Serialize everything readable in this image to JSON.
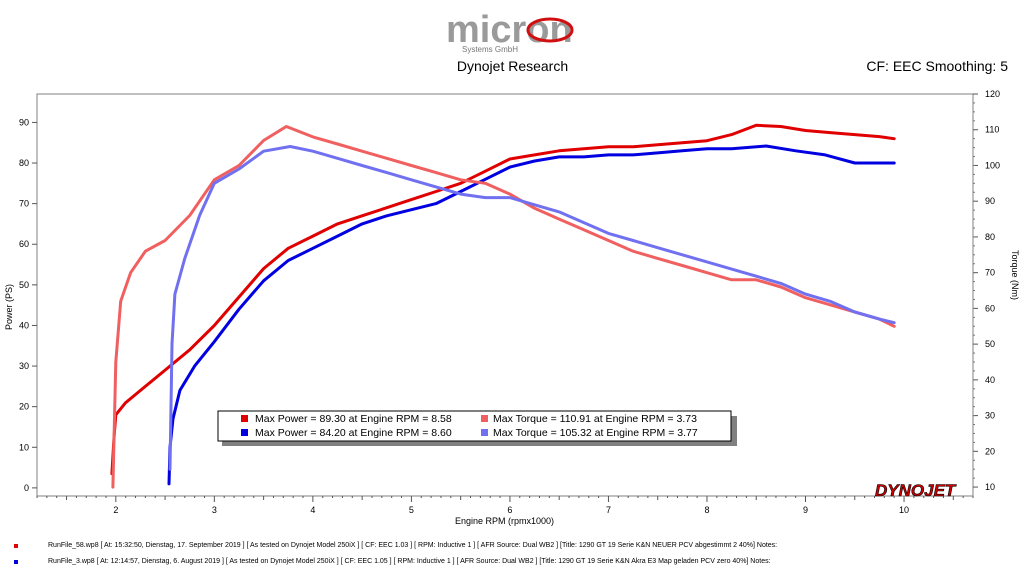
{
  "header": {
    "brand": "micron",
    "brand_sub": "Systems GmbH",
    "title": "Dynojet Research",
    "cf_label": "CF: EEC Smoothing: 5"
  },
  "watermark": "DYNOJET",
  "chart_data": {
    "type": "line",
    "xlabel": "Engine RPM (rpmx1000)",
    "ylabel_left": "Power (PS)",
    "ylabel_right": "Torque (Nm)",
    "xlim": [
      1.2,
      10.7
    ],
    "ylim_left": [
      -2,
      97
    ],
    "ylim_right": [
      7.5,
      120
    ],
    "x_ticks": [
      2,
      3,
      4,
      5,
      6,
      7,
      8,
      9,
      10
    ],
    "y_left_ticks": [
      0,
      10,
      20,
      30,
      40,
      50,
      60,
      70,
      80,
      90
    ],
    "y_right_ticks": [
      10,
      20,
      30,
      40,
      50,
      60,
      70,
      80,
      90,
      100,
      110,
      120
    ],
    "legend": [
      {
        "text": "Max Power = 89.30 at Engine RPM = 8.58",
        "color": "#e00000"
      },
      {
        "text": "Max Torque = 110.91 at Engine RPM = 3.73",
        "color": "#f06060"
      },
      {
        "text": "Max Power = 84.20 at Engine RPM = 8.60",
        "color": "#0000e0"
      },
      {
        "text": "Max Torque = 105.32 at Engine RPM = 3.77",
        "color": "#7070f0"
      }
    ],
    "series": [
      {
        "name": "Power RunFile_58",
        "axis": "left",
        "color": "#e00000",
        "x": [
          1.96,
          1.98,
          2.0,
          2.1,
          2.25,
          2.5,
          2.75,
          3.0,
          3.25,
          3.5,
          3.75,
          4.0,
          4.25,
          4.5,
          4.75,
          5.0,
          5.25,
          5.5,
          5.75,
          6.0,
          6.25,
          6.5,
          6.75,
          7.0,
          7.25,
          7.5,
          7.75,
          8.0,
          8.25,
          8.5,
          8.75,
          9.0,
          9.25,
          9.5,
          9.75,
          9.9
        ],
        "y": [
          3.5,
          12,
          18,
          21,
          24,
          29,
          34,
          40,
          47,
          54,
          59,
          62,
          65,
          67,
          69,
          71,
          73,
          75,
          78,
          81,
          82,
          83,
          83.5,
          84,
          84,
          84.5,
          85,
          85.5,
          87,
          89.3,
          89,
          88,
          87.5,
          87,
          86.5,
          86
        ]
      },
      {
        "name": "Power RunFile_3",
        "axis": "left",
        "color": "#0000e0",
        "x": [
          2.54,
          2.55,
          2.58,
          2.65,
          2.8,
          3.0,
          3.25,
          3.5,
          3.75,
          4.0,
          4.25,
          4.5,
          4.75,
          5.0,
          5.25,
          5.5,
          5.75,
          6.0,
          6.25,
          6.5,
          6.75,
          7.0,
          7.25,
          7.5,
          7.75,
          8.0,
          8.25,
          8.6,
          8.9,
          9.2,
          9.5,
          9.9
        ],
        "y": [
          1,
          10,
          17,
          24,
          30,
          36,
          44,
          51,
          56,
          59,
          62,
          65,
          67,
          68.5,
          70,
          73,
          76,
          79,
          80.5,
          81.5,
          81.5,
          82,
          82,
          82.5,
          83,
          83.5,
          83.5,
          84.2,
          83,
          82,
          80,
          80
        ]
      },
      {
        "name": "Torque RunFile_58",
        "axis": "right",
        "color": "#f06060",
        "x": [
          1.97,
          2.0,
          2.05,
          2.15,
          2.3,
          2.5,
          2.75,
          3.0,
          3.25,
          3.5,
          3.73,
          4.0,
          4.25,
          4.5,
          4.75,
          5.0,
          5.25,
          5.5,
          5.75,
          6.0,
          6.25,
          6.5,
          6.75,
          7.0,
          7.25,
          7.5,
          7.75,
          8.0,
          8.25,
          8.5,
          8.75,
          9.0,
          9.25,
          9.5,
          9.75,
          9.9
        ],
        "y": [
          10,
          45,
          62,
          70,
          76,
          79,
          86,
          96,
          100,
          107,
          110.9,
          108,
          106,
          104,
          102,
          100,
          98,
          96,
          95,
          92,
          88,
          85,
          82,
          79,
          76,
          74,
          72,
          70,
          68,
          68,
          66,
          63,
          61,
          59,
          57,
          55
        ]
      },
      {
        "name": "Torque RunFile_3",
        "axis": "right",
        "color": "#7070f0",
        "x": [
          2.55,
          2.57,
          2.6,
          2.7,
          2.85,
          3.0,
          3.25,
          3.5,
          3.77,
          4.0,
          4.25,
          4.5,
          4.75,
          5.0,
          5.25,
          5.5,
          5.75,
          6.0,
          6.25,
          6.5,
          6.75,
          7.0,
          7.25,
          7.5,
          7.75,
          8.0,
          8.25,
          8.5,
          8.75,
          9.0,
          9.25,
          9.5,
          9.75,
          9.9
        ],
        "y": [
          15,
          50,
          64,
          74,
          86,
          95,
          99,
          104,
          105.3,
          104,
          102,
          100,
          98,
          96,
          94,
          92,
          91,
          91,
          89,
          87,
          84,
          81,
          79,
          77,
          75,
          73,
          71,
          69,
          67,
          64,
          62,
          59,
          57,
          56
        ]
      }
    ]
  },
  "footer": {
    "rows": [
      {
        "color": "#e00000",
        "text": "RunFile_58.wp8 [ At: 15:32:50, Dienstag, 17. September 2019 ] [ As tested on Dynojet Model 250iX ] [ CF: EEC 1.03 ] [ RPM: Inductive 1 ] [ AFR Source: Dual WB2 ] [Title: 1290 GT 19 Serie K&N NEUER PCV abgestimmt 2   40%]  Notes:"
      },
      {
        "color": "#0000e0",
        "text": "RunFile_3.wp8 [ At: 12:14:57, Dienstag, 6. August 2019 ] [ As tested on Dynojet Model 250iX ] [ CF: EEC 1.05 ] [ RPM: Inductive 1 ] [ AFR Source: Dual WB2 ] [Title: 1290 GT 19 Serie K&N Akra E3 Map geladen  PCV zero 40%]  Notes:"
      }
    ]
  }
}
